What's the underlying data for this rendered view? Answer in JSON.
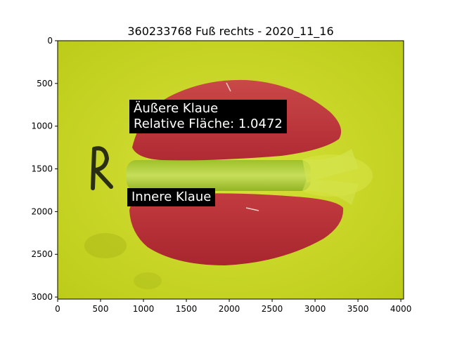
{
  "figure": {
    "title": "360233768 Fuß rechts - 2020_11_16"
  },
  "image_axes": {
    "xlim": [
      0,
      4032
    ],
    "ylim": [
      3024,
      0
    ],
    "xticks": [
      0,
      500,
      1000,
      1500,
      2000,
      2500,
      3000,
      3500,
      4000
    ],
    "yticks": [
      0,
      500,
      1000,
      1500,
      2000,
      2500,
      3000
    ]
  },
  "annotations": {
    "outer_claw": {
      "line1": "Äußere Klaue",
      "line2": "Relative Fläche: 1.0472"
    },
    "inner_claw": {
      "line1": "Innere Klaue"
    }
  },
  "colors": {
    "background_plate": "#c8d81e",
    "claw_mask": "#c0303a",
    "label_bg": "#000000",
    "label_text": "#ffffff"
  }
}
